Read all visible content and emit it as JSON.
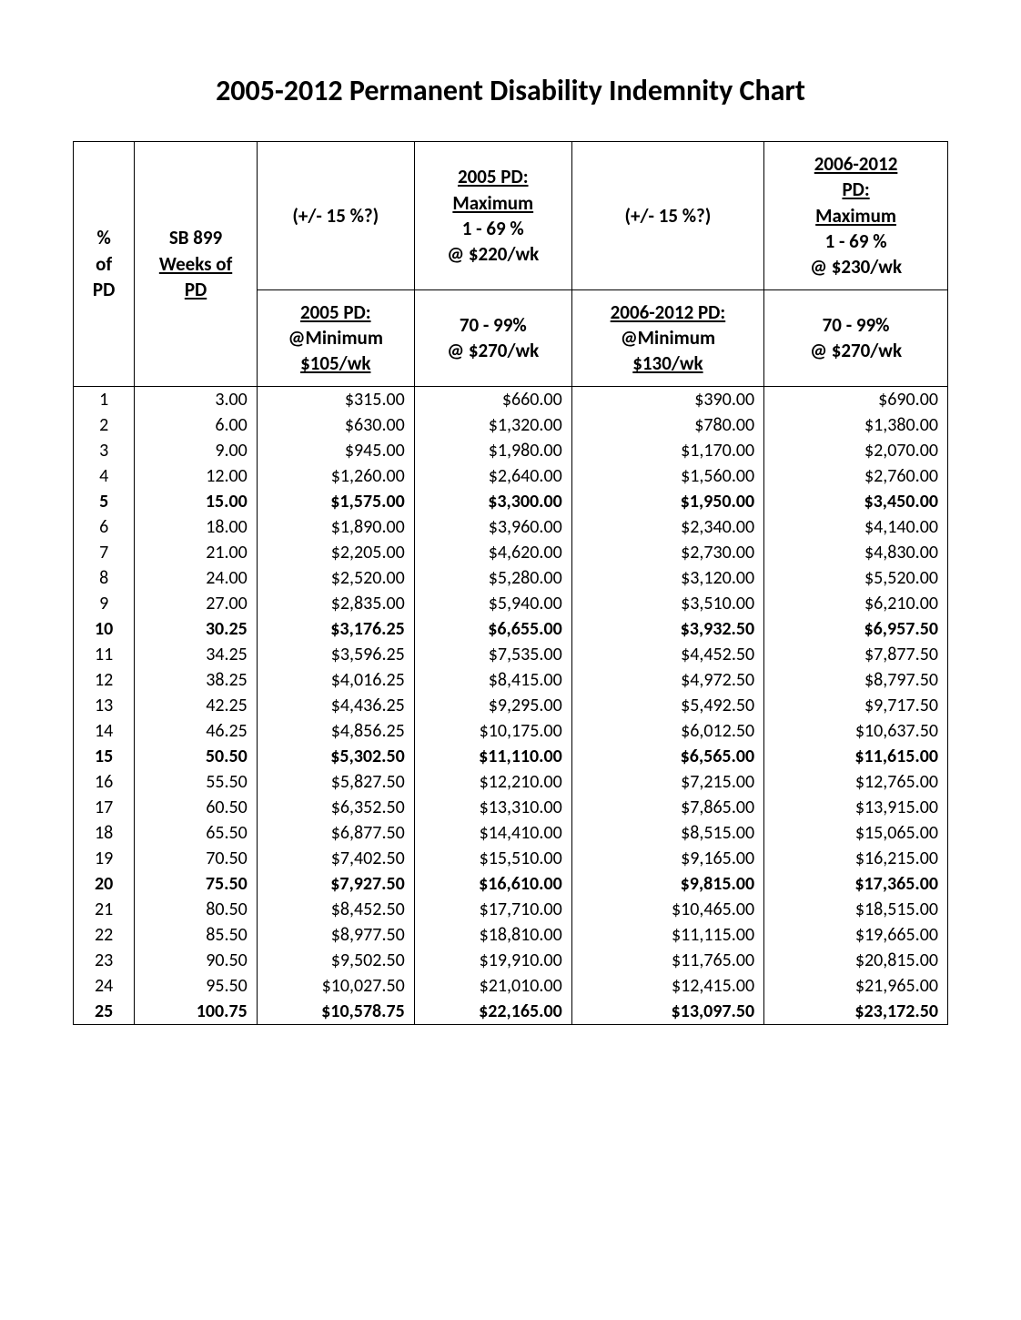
{
  "title": "2005-2012 Permanent Disability Indemnity Chart",
  "header": {
    "row0": {
      "col0": {
        "l1": "%",
        "l2": "of",
        "l3": "PD"
      },
      "col1": {
        "l1": "SB 899",
        "l2": "Weeks of",
        "l3": "PD"
      },
      "col2_top": "(+/- 15 %?)",
      "col3_top": {
        "t": "2005 PD:",
        "s1": "Maximum",
        "s2": "1 - 69 %",
        "s3": "@ $220/wk"
      },
      "col4_top": "(+/- 15 %?)",
      "col5_top": {
        "t": "2006-2012",
        "s0": "PD:",
        "s1": "Maximum",
        "s2": "1 - 69 %",
        "s3": "@ $230/wk"
      },
      "col2_bot": {
        "t": "2005 PD:",
        "s1": "@Minimum",
        "s2": "$105/wk"
      },
      "col3_bot": {
        "s1": "70 - 99%",
        "s2": "@ $270/wk"
      },
      "col4_bot": {
        "t": "2006-2012 PD:",
        "s1": "@Minimum",
        "s2": "$130/wk"
      },
      "col5_bot": {
        "s1": "70 - 99%",
        "s2": "@ $270/wk"
      }
    }
  },
  "rows": [
    {
      "pd": "1",
      "wk": "3.00",
      "c2": "$315.00",
      "c3": "$660.00",
      "c4": "$390.00",
      "c5": "$690.00",
      "bold": false
    },
    {
      "pd": "2",
      "wk": "6.00",
      "c2": "$630.00",
      "c3": "$1,320.00",
      "c4": "$780.00",
      "c5": "$1,380.00",
      "bold": false
    },
    {
      "pd": "3",
      "wk": "9.00",
      "c2": "$945.00",
      "c3": "$1,980.00",
      "c4": "$1,170.00",
      "c5": "$2,070.00",
      "bold": false
    },
    {
      "pd": "4",
      "wk": "12.00",
      "c2": "$1,260.00",
      "c3": "$2,640.00",
      "c4": "$1,560.00",
      "c5": "$2,760.00",
      "bold": false
    },
    {
      "pd": "5",
      "wk": "15.00",
      "c2": "$1,575.00",
      "c3": "$3,300.00",
      "c4": "$1,950.00",
      "c5": "$3,450.00",
      "bold": true
    },
    {
      "pd": "6",
      "wk": "18.00",
      "c2": "$1,890.00",
      "c3": "$3,960.00",
      "c4": "$2,340.00",
      "c5": "$4,140.00",
      "bold": false
    },
    {
      "pd": "7",
      "wk": "21.00",
      "c2": "$2,205.00",
      "c3": "$4,620.00",
      "c4": "$2,730.00",
      "c5": "$4,830.00",
      "bold": false
    },
    {
      "pd": "8",
      "wk": "24.00",
      "c2": "$2,520.00",
      "c3": "$5,280.00",
      "c4": "$3,120.00",
      "c5": "$5,520.00",
      "bold": false
    },
    {
      "pd": "9",
      "wk": "27.00",
      "c2": "$2,835.00",
      "c3": "$5,940.00",
      "c4": "$3,510.00",
      "c5": "$6,210.00",
      "bold": false
    },
    {
      "pd": "10",
      "wk": "30.25",
      "c2": "$3,176.25",
      "c3": "$6,655.00",
      "c4": "$3,932.50",
      "c5": "$6,957.50",
      "bold": true
    },
    {
      "pd": "11",
      "wk": "34.25",
      "c2": "$3,596.25",
      "c3": "$7,535.00",
      "c4": "$4,452.50",
      "c5": "$7,877.50",
      "bold": false
    },
    {
      "pd": "12",
      "wk": "38.25",
      "c2": "$4,016.25",
      "c3": "$8,415.00",
      "c4": "$4,972.50",
      "c5": "$8,797.50",
      "bold": false
    },
    {
      "pd": "13",
      "wk": "42.25",
      "c2": "$4,436.25",
      "c3": "$9,295.00",
      "c4": "$5,492.50",
      "c5": "$9,717.50",
      "bold": false
    },
    {
      "pd": "14",
      "wk": "46.25",
      "c2": "$4,856.25",
      "c3": "$10,175.00",
      "c4": "$6,012.50",
      "c5": "$10,637.50",
      "bold": false
    },
    {
      "pd": "15",
      "wk": "50.50",
      "c2": "$5,302.50",
      "c3": "$11,110.00",
      "c4": "$6,565.00",
      "c5": "$11,615.00",
      "bold": true
    },
    {
      "pd": "16",
      "wk": "55.50",
      "c2": "$5,827.50",
      "c3": "$12,210.00",
      "c4": "$7,215.00",
      "c5": "$12,765.00",
      "bold": false
    },
    {
      "pd": "17",
      "wk": "60.50",
      "c2": "$6,352.50",
      "c3": "$13,310.00",
      "c4": "$7,865.00",
      "c5": "$13,915.00",
      "bold": false
    },
    {
      "pd": "18",
      "wk": "65.50",
      "c2": "$6,877.50",
      "c3": "$14,410.00",
      "c4": "$8,515.00",
      "c5": "$15,065.00",
      "bold": false
    },
    {
      "pd": "19",
      "wk": "70.50",
      "c2": "$7,402.50",
      "c3": "$15,510.00",
      "c4": "$9,165.00",
      "c5": "$16,215.00",
      "bold": false
    },
    {
      "pd": "20",
      "wk": "75.50",
      "c2": "$7,927.50",
      "c3": "$16,610.00",
      "c4": "$9,815.00",
      "c5": "$17,365.00",
      "bold": true
    },
    {
      "pd": "21",
      "wk": "80.50",
      "c2": "$8,452.50",
      "c3": "$17,710.00",
      "c4": "$10,465.00",
      "c5": "$18,515.00",
      "bold": false
    },
    {
      "pd": "22",
      "wk": "85.50",
      "c2": "$8,977.50",
      "c3": "$18,810.00",
      "c4": "$11,115.00",
      "c5": "$19,665.00",
      "bold": false
    },
    {
      "pd": "23",
      "wk": "90.50",
      "c2": "$9,502.50",
      "c3": "$19,910.00",
      "c4": "$11,765.00",
      "c5": "$20,815.00",
      "bold": false
    },
    {
      "pd": "24",
      "wk": "95.50",
      "c2": "$10,027.50",
      "c3": "$21,010.00",
      "c4": "$12,415.00",
      "c5": "$21,965.00",
      "bold": false
    },
    {
      "pd": "25",
      "wk": "100.75",
      "c2": "$10,578.75",
      "c3": "$22,165.00",
      "c4": "$13,097.50",
      "c5": "$23,172.50",
      "bold": true
    }
  ]
}
